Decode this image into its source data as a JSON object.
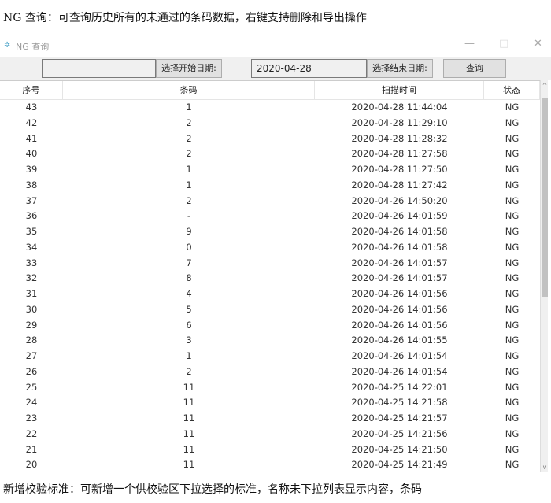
{
  "captions": {
    "top": "NG 查询：可查询历史所有的未通过的条码数据，右键支持删除和导出操作",
    "bottom": "新增校验标准：可新增一个供校验区下拉选择的标准，名称未下拉列表显示内容，条码"
  },
  "window": {
    "title": "NG 查询",
    "minimize": "—",
    "maximize": "□",
    "close": "✕"
  },
  "toolbar": {
    "first_field": "",
    "start_date_button": "选择开始日期:",
    "date_value": "2020-04-28",
    "end_date_button": "选择结束日期:",
    "query_button": "查询"
  },
  "table": {
    "headers": [
      "序号",
      "条码",
      "扫描时间",
      "状态"
    ],
    "rows": [
      [
        "43",
        "1",
        "2020-04-28 11:44:04",
        "NG"
      ],
      [
        "42",
        "2",
        "2020-04-28 11:29:10",
        "NG"
      ],
      [
        "41",
        "2",
        "2020-04-28 11:28:32",
        "NG"
      ],
      [
        "40",
        "2",
        "2020-04-28 11:27:58",
        "NG"
      ],
      [
        "39",
        "1",
        "2020-04-28 11:27:50",
        "NG"
      ],
      [
        "38",
        "1",
        "2020-04-28 11:27:42",
        "NG"
      ],
      [
        "37",
        "2",
        "2020-04-26 14:50:20",
        "NG"
      ],
      [
        "36",
        "-",
        "2020-04-26 14:01:59",
        "NG"
      ],
      [
        "35",
        "9",
        "2020-04-26 14:01:58",
        "NG"
      ],
      [
        "34",
        "0",
        "2020-04-26 14:01:58",
        "NG"
      ],
      [
        "33",
        "7",
        "2020-04-26 14:01:57",
        "NG"
      ],
      [
        "32",
        "8",
        "2020-04-26 14:01:57",
        "NG"
      ],
      [
        "31",
        "4",
        "2020-04-26 14:01:56",
        "NG"
      ],
      [
        "30",
        "5",
        "2020-04-26 14:01:56",
        "NG"
      ],
      [
        "29",
        "6",
        "2020-04-26 14:01:56",
        "NG"
      ],
      [
        "28",
        "3",
        "2020-04-26 14:01:55",
        "NG"
      ],
      [
        "27",
        "1",
        "2020-04-26 14:01:54",
        "NG"
      ],
      [
        "26",
        "2",
        "2020-04-26 14:01:54",
        "NG"
      ],
      [
        "25",
        "11",
        "2020-04-25 14:22:01",
        "NG"
      ],
      [
        "24",
        "11",
        "2020-04-25 14:21:58",
        "NG"
      ],
      [
        "23",
        "11",
        "2020-04-25 14:21:57",
        "NG"
      ],
      [
        "22",
        "11",
        "2020-04-25 14:21:56",
        "NG"
      ],
      [
        "21",
        "11",
        "2020-04-25 14:21:50",
        "NG"
      ],
      [
        "20",
        "11",
        "2020-04-25 14:21:49",
        "NG"
      ]
    ]
  }
}
